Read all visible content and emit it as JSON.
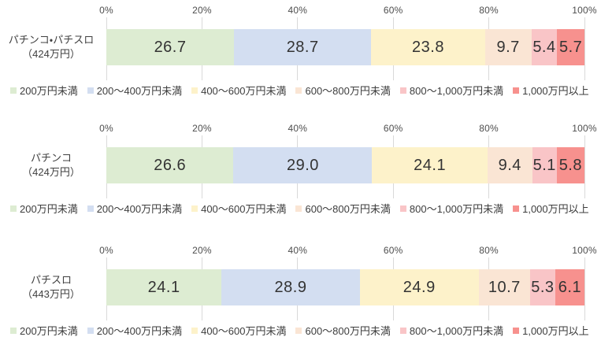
{
  "axis": {
    "ticks": [
      "0%",
      "20%",
      "40%",
      "60%",
      "80%",
      "100%"
    ]
  },
  "legend": [
    {
      "key": "under-200",
      "label": "200万円未満",
      "color": "#ddecd2"
    },
    {
      "key": "200-400",
      "label": "200～400万円未満",
      "color": "#d3def1"
    },
    {
      "key": "400-600",
      "label": "400～600万円未満",
      "color": "#fdf2ca"
    },
    {
      "key": "600-800",
      "label": "600～800万円未満",
      "color": "#fae5d4"
    },
    {
      "key": "800-1000",
      "label": "800～1,000万円未満",
      "color": "#f9c5c7"
    },
    {
      "key": "over-1000",
      "label": "1,000万円以上",
      "color": "#f7918e"
    }
  ],
  "charts": [
    {
      "label_line1": "パチンコ・パチスロ",
      "label_line2": "（424万円）",
      "values": [
        "26.7",
        "28.7",
        "23.8",
        "9.7",
        "5.4",
        "5.7"
      ]
    },
    {
      "label_line1": "パチンコ",
      "label_line2": "（424万円）",
      "values": [
        "26.6",
        "29.0",
        "24.1",
        "9.4",
        "5.1",
        "5.8"
      ]
    },
    {
      "label_line1": "パチスロ",
      "label_line2": "（443万円）",
      "values": [
        "24.1",
        "28.9",
        "24.9",
        "10.7",
        "5.3",
        "6.1"
      ]
    }
  ],
  "chart_data": [
    {
      "type": "bar",
      "stacked": true,
      "orientation": "horizontal",
      "title": "パチンコ・パチスロ（424万円）",
      "categories": [
        "200万円未満",
        "200～400万円未満",
        "400～600万円未満",
        "600～800万円未満",
        "800～1,000万円未満",
        "1,000万円以上"
      ],
      "values": [
        26.7,
        28.7,
        23.8,
        9.7,
        5.4,
        5.7
      ],
      "xlabel": "",
      "ylabel": "",
      "xlim": [
        0,
        100
      ],
      "tick_labels": [
        "0%",
        "20%",
        "40%",
        "60%",
        "80%",
        "100%"
      ],
      "unit": "%",
      "grid": true,
      "legend_position": "bottom"
    },
    {
      "type": "bar",
      "stacked": true,
      "orientation": "horizontal",
      "title": "パチンコ（424万円）",
      "categories": [
        "200万円未満",
        "200～400万円未満",
        "400～600万円未満",
        "600～800万円未満",
        "800～1,000万円未満",
        "1,000万円以上"
      ],
      "values": [
        26.6,
        29.0,
        24.1,
        9.4,
        5.1,
        5.8
      ],
      "xlabel": "",
      "ylabel": "",
      "xlim": [
        0,
        100
      ],
      "tick_labels": [
        "0%",
        "20%",
        "40%",
        "60%",
        "80%",
        "100%"
      ],
      "unit": "%",
      "grid": true,
      "legend_position": "bottom"
    },
    {
      "type": "bar",
      "stacked": true,
      "orientation": "horizontal",
      "title": "パチスロ（443万円）",
      "categories": [
        "200万円未満",
        "200～400万円未満",
        "400～600万円未満",
        "600～800万円未満",
        "800～1,000万円未満",
        "1,000万円以上"
      ],
      "values": [
        24.1,
        28.9,
        24.9,
        10.7,
        5.3,
        6.1
      ],
      "xlabel": "",
      "ylabel": "",
      "xlim": [
        0,
        100
      ],
      "tick_labels": [
        "0%",
        "20%",
        "40%",
        "60%",
        "80%",
        "100%"
      ],
      "unit": "%",
      "grid": true,
      "legend_position": "bottom"
    }
  ]
}
